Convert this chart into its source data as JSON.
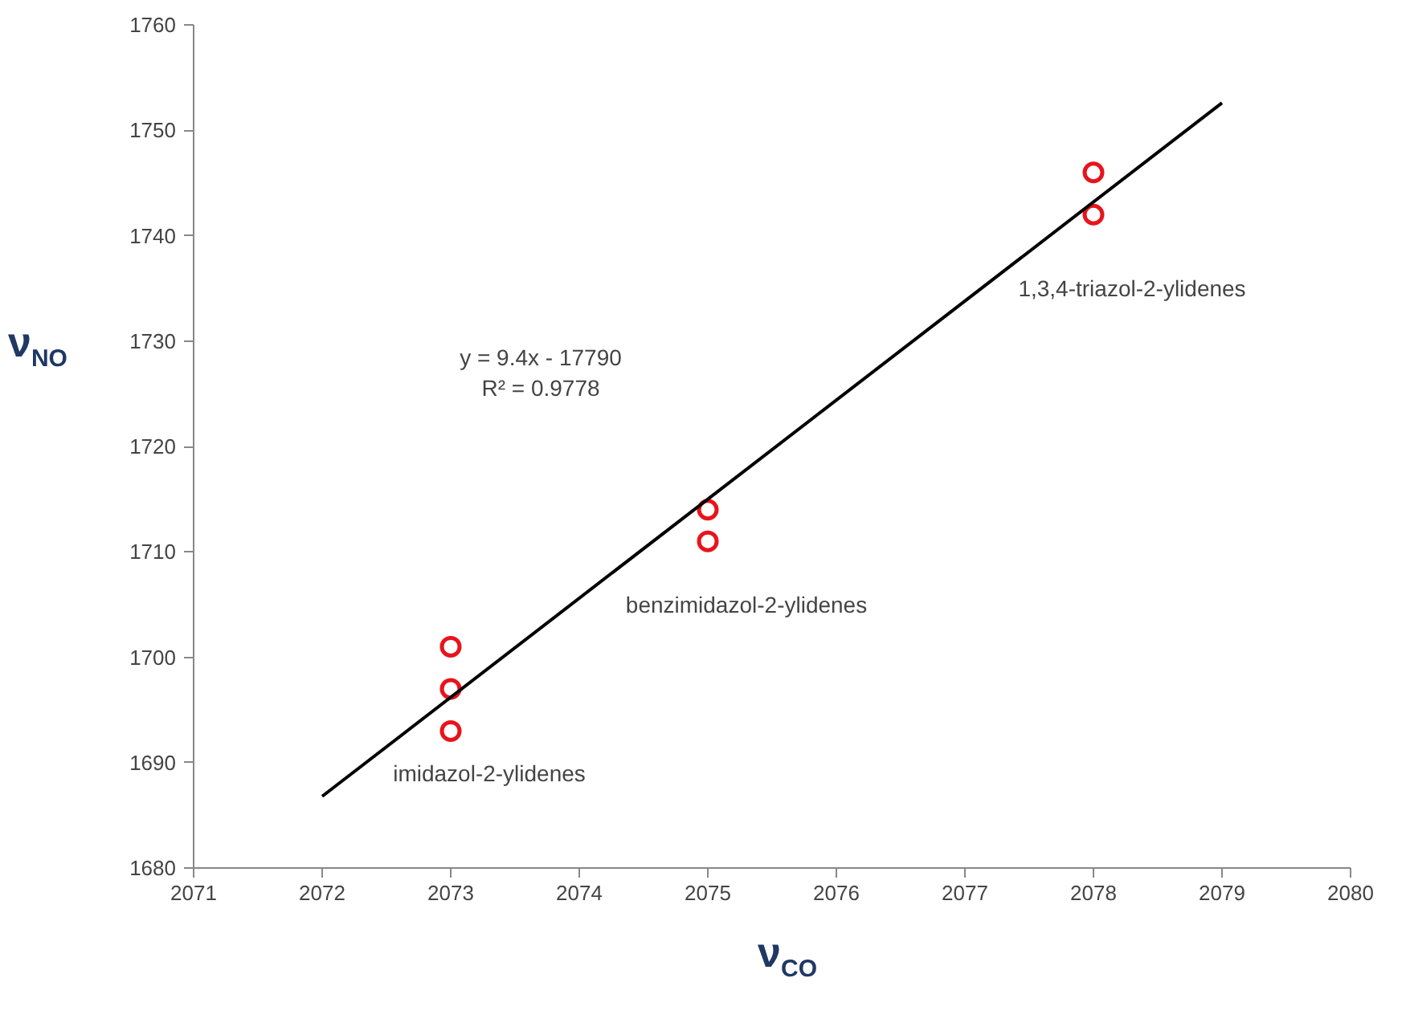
{
  "chart_data": {
    "type": "scatter",
    "xlabel": "ν$_{CO}$",
    "ylabel": "ν$_{NO}$",
    "xlim": [
      2071,
      2080
    ],
    "xticks": [
      2071,
      2072,
      2073,
      2074,
      2075,
      2076,
      2077,
      2078,
      2079,
      2080
    ],
    "ylim": [
      1680,
      1760
    ],
    "yticks": [
      1680,
      1690,
      1700,
      1710,
      1720,
      1730,
      1740,
      1750,
      1760
    ],
    "grid": false,
    "series": [
      {
        "color": "#e8141c",
        "marker": "circle",
        "x": [
          2073,
          2073,
          2073,
          2075,
          2075,
          2078,
          2078
        ],
        "values": [
          1701,
          1697,
          1693,
          1714,
          1711,
          1746,
          1742
        ]
      },
      {
        "type": "line",
        "color": "#000000",
        "x": [
          2072,
          2079
        ],
        "values": [
          1686.8,
          1752.6
        ]
      }
    ],
    "annotations": [
      "y = 9.4x - 17790\nR² = 0.9778",
      "imidazol-2-ylidenes",
      "benzimidazol-2-ylidenes",
      "1,3,4-triazol-2-ylidenes"
    ]
  }
}
